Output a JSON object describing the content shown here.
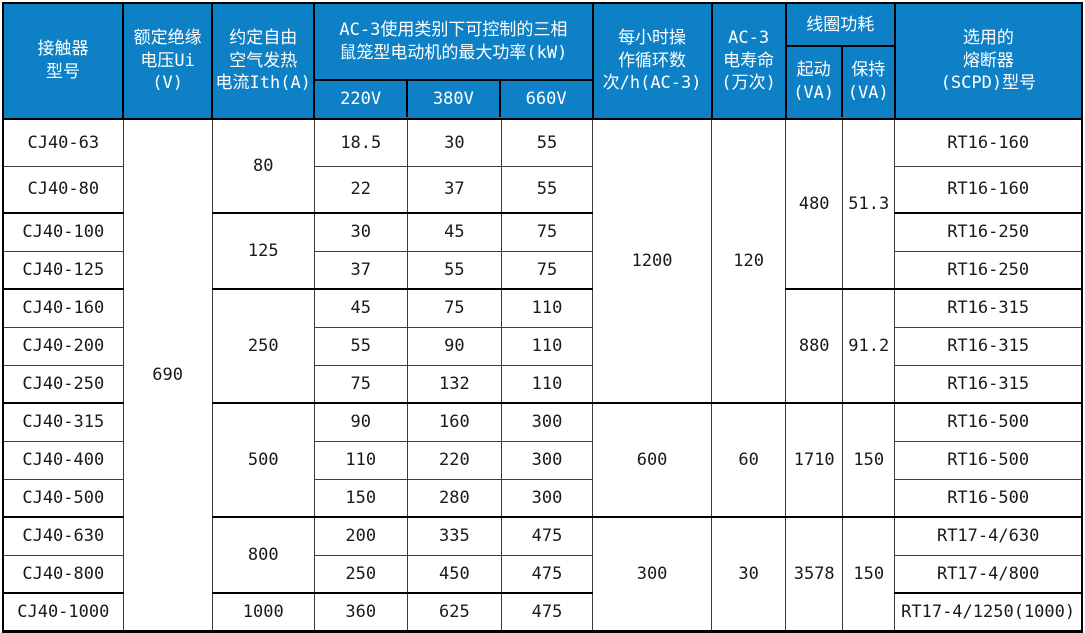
{
  "colors": {
    "header_bg": "#0e80c6",
    "header_text": "#ffffff",
    "grid_line": "#3c3c3c",
    "outer_border": "#000000"
  },
  "header": {
    "model": "接触器\n型号",
    "voltage": "额定绝缘\n电压Ui (V)",
    "thermal": "约定自由\n空气发热\n电流Ith(A)",
    "power_group": "AC-3使用类别下可控制的三相\n鼠笼型电动机的最大功率(kW)",
    "power_cols": [
      "220V",
      "380V",
      "660V"
    ],
    "ops": "每小时操\n作循环数\n次/h(AC-3)",
    "life": "AC-3\n电寿命\n(万次)",
    "coil_group": "线圈功耗",
    "coil_start": "起动\n(VA)",
    "coil_hold": "保持\n(VA)",
    "fuse": "选用的\n熔断器\n(SCPD)型号"
  },
  "insulation_voltage": "690",
  "rows": [
    {
      "model": "CJ40-63",
      "p220": "18.5",
      "p380": "30",
      "p660": "55",
      "fuse": "RT16-160"
    },
    {
      "model": "CJ40-80",
      "p220": "22",
      "p380": "37",
      "p660": "55",
      "fuse": "RT16-160"
    },
    {
      "model": "CJ40-100",
      "p220": "30",
      "p380": "45",
      "p660": "75",
      "fuse": "RT16-250"
    },
    {
      "model": "CJ40-125",
      "p220": "37",
      "p380": "55",
      "p660": "75",
      "fuse": "RT16-250"
    },
    {
      "model": "CJ40-160",
      "p220": "45",
      "p380": "75",
      "p660": "110",
      "fuse": "RT16-315"
    },
    {
      "model": "CJ40-200",
      "p220": "55",
      "p380": "90",
      "p660": "110",
      "fuse": "RT16-315"
    },
    {
      "model": "CJ40-250",
      "p220": "75",
      "p380": "132",
      "p660": "110",
      "fuse": "RT16-315"
    },
    {
      "model": "CJ40-315",
      "p220": "90",
      "p380": "160",
      "p660": "300",
      "fuse": "RT16-500"
    },
    {
      "model": "CJ40-400",
      "p220": "110",
      "p380": "220",
      "p660": "300",
      "fuse": "RT16-500"
    },
    {
      "model": "CJ40-500",
      "p220": "150",
      "p380": "280",
      "p660": "300",
      "fuse": "RT16-500"
    },
    {
      "model": "CJ40-630",
      "p220": "200",
      "p380": "335",
      "p660": "475",
      "fuse": "RT17-4/630"
    },
    {
      "model": "CJ40-800",
      "p220": "250",
      "p380": "450",
      "p660": "475",
      "fuse": "RT17-4/800"
    },
    {
      "model": "CJ40-1000",
      "p220": "360",
      "p380": "625",
      "p660": "475",
      "fuse": "RT17-4/1250(1000)"
    }
  ],
  "ith_groups": [
    {
      "value": "80",
      "row_count": 2
    },
    {
      "value": "125",
      "row_count": 2
    },
    {
      "value": "250",
      "row_count": 3
    },
    {
      "value": "500",
      "row_count": 3
    },
    {
      "value": "800",
      "row_count": 2
    },
    {
      "value": "1000",
      "row_count": 1
    }
  ],
  "ops_groups": [
    {
      "cycles": "1200",
      "life": "120",
      "row_count": 7
    },
    {
      "cycles": "600",
      "life": "60",
      "row_count": 3
    },
    {
      "cycles": "300",
      "life": "30",
      "row_count": 3
    }
  ],
  "coil_groups": [
    {
      "start": "480",
      "hold": "51.3",
      "row_count": 4
    },
    {
      "start": "880",
      "hold": "91.2",
      "row_count": 3
    },
    {
      "start": "1710",
      "hold": "150",
      "row_count": 3
    },
    {
      "start": "3578",
      "hold": "150",
      "row_count": 3
    }
  ]
}
